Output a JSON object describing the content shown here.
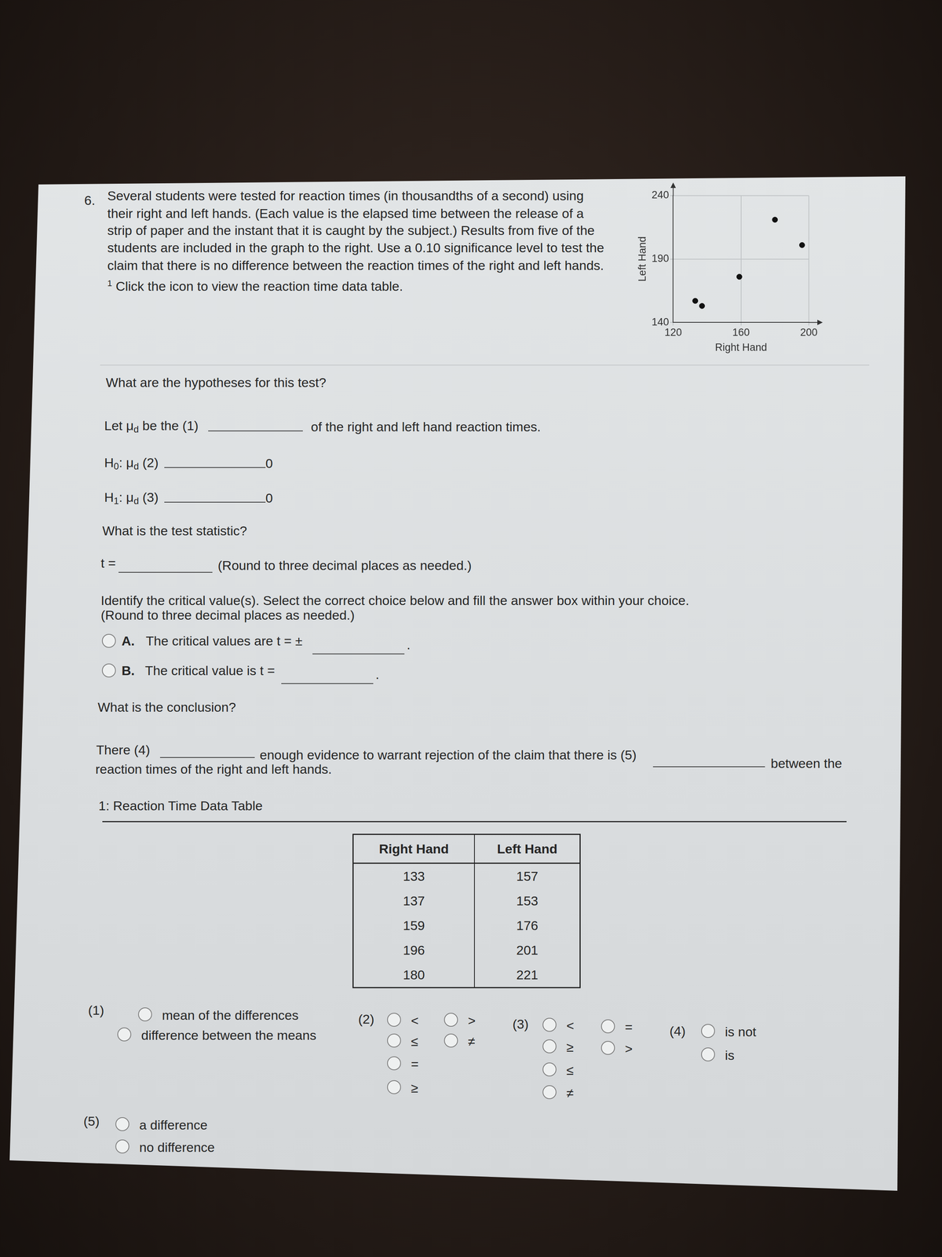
{
  "document": {
    "question": {
      "number": "6.",
      "lines": [
        "Several students were tested for reaction times (in thousandths of a second) using",
        "their right and left hands. (Each value is the elapsed time between the release of a",
        "strip of paper and the instant that it is caught by the subject.) Results from five of the",
        "students are included in the graph to the right. Use a 0.10 significance level to test the",
        "claim that there is no difference between the reaction times of the right and left hands."
      ],
      "footnote": {
        "marker": "1",
        "text": "Click the icon to view the reaction time data table."
      }
    },
    "hypotheses": {
      "prompt": "What are the hypotheses for this test?",
      "definition": {
        "before": "Let μ",
        "sub": "d",
        "middle": " be the (1)",
        "after": "of the right and left hand reaction times."
      },
      "h0": {
        "label": "H",
        "label_sub": "0",
        "mid": ": μ",
        "mid_sub": "d",
        "part": " (2)",
        "rhs": "0"
      },
      "h1": {
        "label": "H",
        "label_sub": "1",
        "mid": ": μ",
        "mid_sub": "d",
        "part": " (3)",
        "rhs": "0"
      }
    },
    "test_statistic": {
      "prompt": "What is the test statistic?",
      "lhs": "t =",
      "note": "(Round to three decimal places as needed.)"
    },
    "critical": {
      "prompt": "Identify the critical value(s). Select the correct choice below and fill the answer box within your choice.",
      "note": "(Round to three decimal places as needed.)",
      "choices": [
        {
          "letter": "A.",
          "text": "The critical values are t = ±",
          "end": "."
        },
        {
          "letter": "B.",
          "text": "The critical value is t =",
          "end": "."
        }
      ]
    },
    "conclusion": {
      "prompt": "What is the conclusion?",
      "parts": [
        "There (4)",
        "enough evidence to warrant rejection of the claim that there is (5)",
        "between the"
      ],
      "line2": "reaction times of the right and left hands."
    },
    "data_table": {
      "title": "1: Reaction Time Data Table",
      "header": [
        "Right Hand",
        "Left Hand"
      ],
      "rows": [
        [
          133,
          157
        ],
        [
          137,
          153
        ],
        [
          159,
          176
        ],
        [
          196,
          201
        ],
        [
          180,
          221
        ]
      ]
    },
    "options": [
      {
        "label": "(1)",
        "columns": [
          [
            "mean of the differences",
            "difference between the means"
          ]
        ]
      },
      {
        "label": "(2)",
        "columns": [
          [
            "<",
            "≤",
            "=",
            "≥"
          ],
          [
            ">",
            "≠"
          ]
        ]
      },
      {
        "label": "(3)",
        "columns": [
          [
            "<",
            "≥",
            "≤",
            "≠"
          ],
          [
            "=",
            ">"
          ]
        ]
      },
      {
        "label": "(4)",
        "columns": [
          [
            "is not",
            "is"
          ]
        ]
      },
      {
        "label": "(5)",
        "columns": [
          [
            "a difference",
            "no difference"
          ]
        ]
      }
    ]
  },
  "chart_data": {
    "type": "scatter",
    "x_label": "Right Hand",
    "y_label": "Left Hand",
    "x": [
      133,
      137,
      159,
      196,
      180
    ],
    "values": [
      157,
      153,
      176,
      201,
      221
    ],
    "color": "#111111",
    "xlim": [
      120,
      200
    ],
    "xticks": [
      120,
      160,
      200
    ],
    "ylim": [
      140,
      240
    ],
    "yticks": [
      140,
      190,
      240
    ],
    "grid": true
  }
}
